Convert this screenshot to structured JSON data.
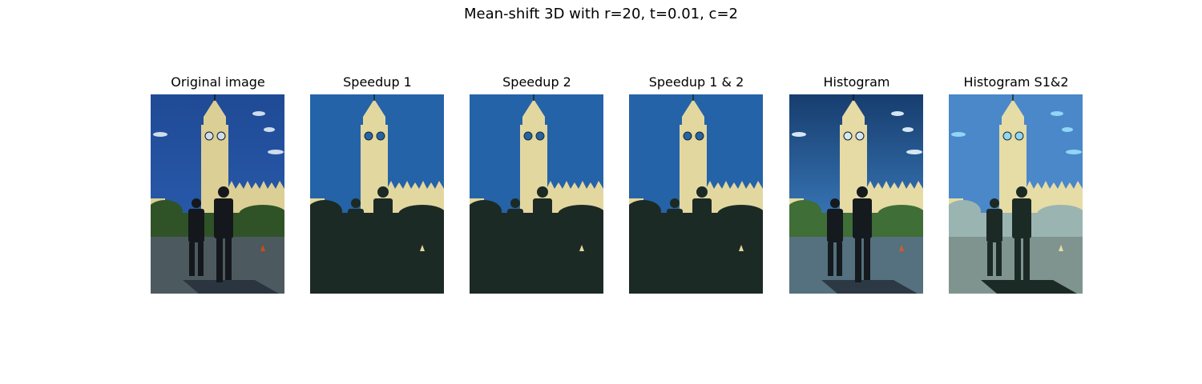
{
  "figure": {
    "title": "Mean-shift 3D with r=20, t=0.01, c=2"
  },
  "panels": [
    {
      "title": "Original image",
      "palette": {
        "sky": "#2d62b6",
        "skyTop": "#1f4a95",
        "cloud": "#cfdcec",
        "tower": "#dccf95",
        "trees": "#2f5326",
        "ground": "#4c5a60",
        "uniform": "#14181c",
        "shadow": "#2a3540",
        "cone": "#d04a1a"
      }
    },
    {
      "title": "Speedup 1",
      "palette": {
        "sky": "#2563a8",
        "skyTop": "#2563a8",
        "cloud": "#2563a8",
        "tower": "#e3d7a0",
        "trees": "#1c2a25",
        "ground": "#1c2a25",
        "uniform": "#1c2a25",
        "shadow": "#1c2a25",
        "cone": "#e3d7a0"
      }
    },
    {
      "title": "Speedup 2",
      "palette": {
        "sky": "#2563a8",
        "skyTop": "#2563a8",
        "cloud": "#2563a8",
        "tower": "#e3d7a0",
        "trees": "#1c2a25",
        "ground": "#1c2a25",
        "uniform": "#1c2a25",
        "shadow": "#1c2a25",
        "cone": "#e3d7a0"
      }
    },
    {
      "title": "Speedup 1 & 2",
      "palette": {
        "sky": "#2563a8",
        "skyTop": "#2563a8",
        "cloud": "#2563a8",
        "tower": "#e3d7a0",
        "trees": "#1c2a25",
        "ground": "#1c2a25",
        "uniform": "#1c2a25",
        "shadow": "#1c2a25",
        "cone": "#e3d7a0"
      }
    },
    {
      "title": "Histogram",
      "palette": {
        "sky": "#4a97e0",
        "skyTop": "#173d6e",
        "cloud": "#d5e7f5",
        "tower": "#e6dba4",
        "trees": "#3f6e36",
        "ground": "#55707e",
        "uniform": "#141a1e",
        "shadow": "#2c3944",
        "cone": "#d95a24"
      }
    },
    {
      "title": "Histogram S1&2",
      "palette": {
        "sky": "#4a88c9",
        "skyTop": "#4a88c9",
        "cloud": "#8fd6f7",
        "tower": "#e6dca6",
        "trees": "#9ab4b2",
        "ground": "#7f948f",
        "uniform": "#1c2a25",
        "shadow": "#1c2a25",
        "cone": "#e6dca6"
      }
    }
  ]
}
